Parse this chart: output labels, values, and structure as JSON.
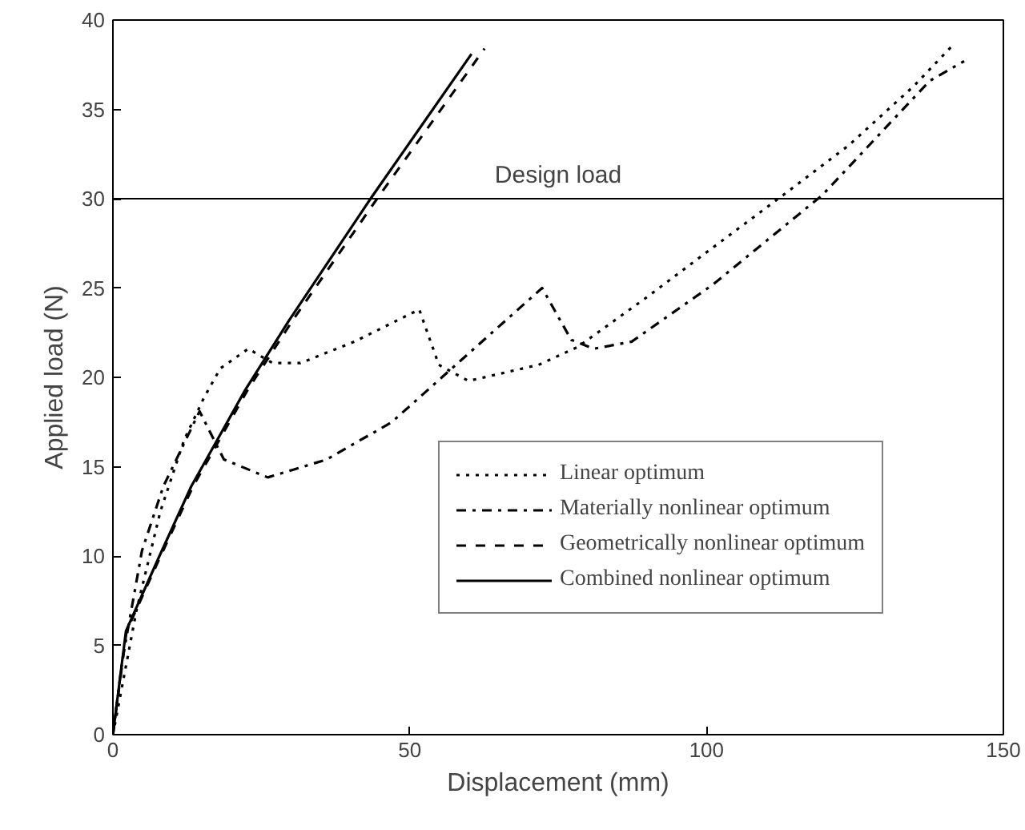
{
  "chart_data": {
    "type": "line",
    "xlabel": "Displacement (mm)",
    "ylabel": "Applied load (N)",
    "xlim": [
      0,
      150
    ],
    "ylim": [
      0,
      40
    ],
    "xticks": [
      0,
      50,
      100,
      150
    ],
    "yticks": [
      0,
      5,
      10,
      15,
      20,
      25,
      30,
      35,
      40
    ],
    "grid": false,
    "legend": "bottom right",
    "series": [
      {
        "name": "Linear optimum",
        "color": "#000000",
        "line_style": "dotted",
        "x": [
          0,
          4,
          8,
          12,
          15.4,
          18.1,
          22.8,
          26.9,
          31.6,
          40.7,
          51.6,
          54.9,
          59.9,
          71.7,
          78.3,
          90,
          100,
          112.9,
          124,
          134.9,
          141.5
        ],
        "values": [
          0,
          7,
          12.5,
          16.5,
          18.9,
          20.5,
          21.6,
          20.8,
          20.8,
          22.0,
          23.8,
          20.7,
          19.8,
          20.7,
          21.7,
          24.5,
          27,
          30.2,
          33,
          36.3,
          38.6
        ]
      },
      {
        "name": "Materially nonlinear optimum",
        "color": "#000000",
        "line_style": "dashdot",
        "x": [
          0,
          1.6,
          4.9,
          8.5,
          14.6,
          18.7,
          26.1,
          36.0,
          47.0,
          57.1,
          72.3,
          77.2,
          81.0,
          87.4,
          101.1,
          119.5,
          137.6,
          143.4
        ],
        "values": [
          0,
          4.2,
          10.3,
          13.9,
          18.1,
          15.4,
          14.4,
          15.4,
          17.5,
          20.5,
          25.0,
          22.1,
          21.6,
          22.0,
          25.2,
          30.2,
          36.6,
          37.7
        ]
      },
      {
        "name": "Geometrically nonlinear optimum",
        "color": "#000000",
        "line_style": "dashed",
        "x": [
          0,
          2.3,
          7.9,
          13.5,
          22.7,
          30.3,
          44.5,
          62.6
        ],
        "values": [
          0,
          5.8,
          9.9,
          13.9,
          19.3,
          23.2,
          30.0,
          38.4
        ]
      },
      {
        "name": "Combined nonlinear optimum",
        "color": "#000000",
        "line_style": "solid",
        "x": [
          0,
          2.2,
          7.7,
          13.2,
          22.3,
          29.7,
          43.4,
          60.4
        ],
        "values": [
          0,
          5.8,
          9.9,
          13.9,
          19.3,
          23.2,
          30.0,
          38.1
        ]
      }
    ],
    "ref_lines": [
      {
        "axis": "y",
        "value": 30,
        "label": "Design load",
        "color": "#000000"
      }
    ]
  }
}
